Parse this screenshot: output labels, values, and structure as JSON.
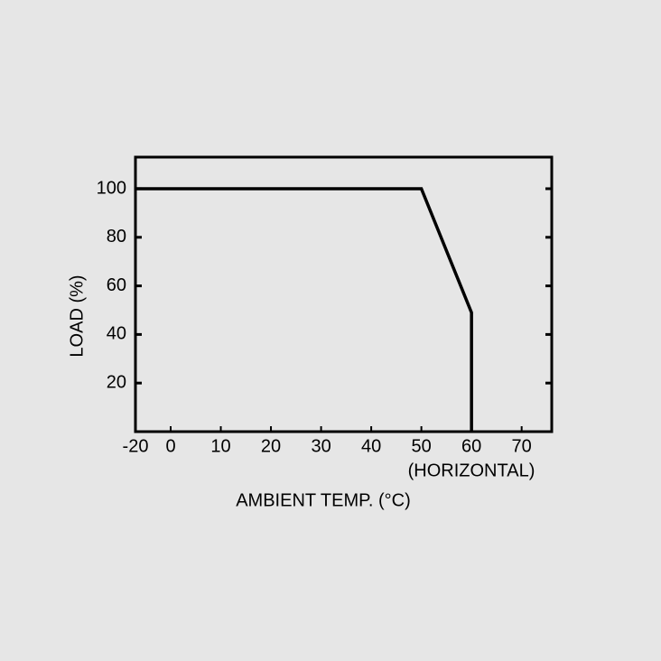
{
  "chart_data": {
    "type": "line",
    "x_label": "AMBIENT TEMP. (°C)",
    "y_label": "LOAD (%)",
    "annotation": "(HORIZONTAL)",
    "x": [
      -20,
      50,
      60,
      60
    ],
    "series": [
      {
        "color": "#000000",
        "values": [
          100,
          100,
          49,
          0
        ]
      }
    ],
    "xlim": [
      -20,
      76
    ],
    "ylim": [
      0,
      113
    ],
    "xticks": [
      -20,
      0,
      10,
      20,
      30,
      40,
      50,
      60,
      70
    ],
    "yticks": [
      20,
      40,
      60,
      80,
      100
    ]
  }
}
